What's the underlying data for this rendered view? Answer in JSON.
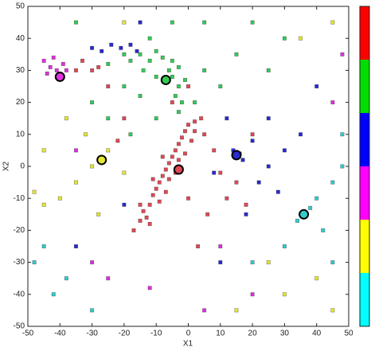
{
  "chart_data": {
    "type": "scatter",
    "x_label": "X1",
    "y_label": "X2",
    "xlim": [
      -50,
      50
    ],
    "ylim": [
      -50,
      50
    ],
    "xticks": [
      -50,
      -40,
      -30,
      -20,
      -10,
      0,
      10,
      20,
      30,
      40,
      50
    ],
    "yticks": [
      -50,
      -40,
      -30,
      -20,
      -10,
      0,
      10,
      20,
      30,
      40,
      50
    ],
    "series": [
      {
        "color": "#e04a55",
        "x": [
          -17,
          -15,
          -14,
          -12,
          -11,
          -10,
          -9,
          -8,
          -7,
          -6,
          -5,
          -4,
          -3,
          -2,
          -1,
          0,
          2,
          4,
          -13,
          -12,
          -9,
          -7,
          -6,
          -4,
          -3,
          -1,
          1,
          2,
          -15,
          -11,
          -8,
          5,
          8,
          10,
          12,
          6,
          3,
          -20,
          -25,
          -30,
          -35,
          -33,
          -28,
          -22,
          0,
          15,
          20,
          -5,
          0,
          18
        ],
        "y": [
          -20,
          -17,
          -14,
          -12,
          -9,
          -7,
          -5,
          -3,
          -1,
          1,
          3,
          5,
          7,
          9,
          11,
          13,
          14,
          15,
          -16,
          -18,
          -11,
          -8,
          -4,
          -2,
          2,
          4,
          8,
          11,
          -12,
          -4,
          3,
          10,
          5,
          -2,
          -10,
          -15,
          -25,
          15,
          25,
          30,
          30,
          33,
          31,
          8,
          -10,
          -5,
          10,
          20,
          25,
          -12
        ]
      },
      {
        "color": "#33cc55",
        "x": [
          -20,
          -18,
          -15,
          -12,
          -10,
          -8,
          -5,
          -3,
          -5,
          -3,
          -4,
          -2,
          -3,
          -6,
          -1,
          -25,
          -14,
          -10,
          -20,
          -15,
          -25,
          -30,
          -10,
          -18,
          5,
          10,
          15,
          20,
          5,
          -5,
          -35,
          25,
          -12,
          2,
          30
        ],
        "y": [
          35,
          33,
          35,
          33,
          36,
          34,
          33,
          31,
          28,
          25,
          22,
          20,
          17,
          30,
          27,
          32,
          30,
          28,
          25,
          22,
          15,
          20,
          15,
          10,
          30,
          25,
          35,
          45,
          45,
          45,
          45,
          30,
          40,
          20,
          40
        ]
      },
      {
        "color": "#2a2ad0",
        "x": [
          -30,
          -27,
          -24,
          -21,
          -18,
          -16,
          15,
          14,
          17,
          16,
          20,
          25,
          22,
          12,
          30,
          28,
          8,
          18,
          25,
          -20,
          -35,
          10,
          35,
          -15,
          40
        ],
        "y": [
          37,
          36,
          38,
          37,
          38,
          36,
          3,
          5,
          2,
          4,
          8,
          0,
          -5,
          15,
          5,
          -8,
          -2,
          -15,
          15,
          -12,
          -25,
          -30,
          10,
          45,
          25
        ]
      },
      {
        "color": "#dd33dd",
        "x": [
          -45,
          -43,
          -41,
          -44,
          -39,
          -42,
          -40,
          -38,
          -25,
          -12,
          10,
          5,
          -30,
          20,
          48,
          -35,
          45
        ],
        "y": [
          33,
          31,
          30,
          29,
          32,
          34,
          28,
          30,
          -35,
          -38,
          -25,
          -45,
          -30,
          -40,
          35,
          5,
          20
        ]
      },
      {
        "color": "#e6e633",
        "x": [
          -27,
          -30,
          -25,
          -35,
          -40,
          -45,
          -32,
          -20,
          -38,
          -45,
          -48,
          35,
          30,
          45,
          25,
          40,
          -28,
          -20,
          15,
          45
        ],
        "y": [
          2,
          0,
          5,
          -5,
          -10,
          -12,
          10,
          -2,
          15,
          5,
          -8,
          40,
          -40,
          45,
          -30,
          -35,
          -15,
          45,
          -45,
          -45
        ]
      },
      {
        "color": "#33cccc",
        "x": [
          36,
          38,
          34,
          40,
          45,
          42,
          30,
          48,
          -45,
          -42,
          -30,
          -38,
          -48,
          45,
          20,
          48
        ],
        "y": [
          -15,
          -13,
          -17,
          -10,
          -5,
          -20,
          -25,
          0,
          -25,
          -40,
          -45,
          -35,
          -30,
          -30,
          -30,
          10
        ]
      }
    ],
    "centers": {
      "x": [
        -40,
        -7,
        -27,
        -3,
        15,
        36
      ],
      "y": [
        28,
        27,
        2,
        -1,
        3.5,
        -15
      ],
      "colors": [
        "#dd33dd",
        "#33cc55",
        "#e6e633",
        "#e04a55",
        "#2a2ad0",
        "#33cccc"
      ]
    },
    "colorbar": [
      "#ff0000",
      "#00dd00",
      "#0000ff",
      "#ff00ff",
      "#ffff00",
      "#00ffff"
    ]
  }
}
